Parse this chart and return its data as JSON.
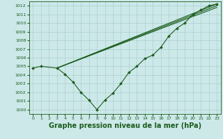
{
  "background_color": "#cce8e8",
  "grid_color": "#aacfcf",
  "line_color": "#1a5c1a",
  "marker_color": "#1a5c1a",
  "xlabel": "Graphe pression niveau de la mer (hPa)",
  "xlabel_fontsize": 7,
  "xlim": [
    -0.5,
    23.5
  ],
  "ylim": [
    999.5,
    1012.5
  ],
  "yticks": [
    1000,
    1001,
    1002,
    1003,
    1004,
    1005,
    1006,
    1007,
    1008,
    1009,
    1010,
    1011,
    1012
  ],
  "xticks": [
    0,
    1,
    2,
    3,
    4,
    5,
    6,
    7,
    8,
    9,
    10,
    11,
    12,
    13,
    14,
    15,
    16,
    17,
    18,
    19,
    20,
    21,
    22,
    23
  ],
  "series_main": {
    "x": [
      0,
      1,
      3,
      4,
      5,
      6,
      7,
      8,
      9,
      10,
      11,
      12,
      13,
      14,
      15,
      16,
      17,
      18,
      19,
      20,
      21,
      22,
      23
    ],
    "y": [
      1004.8,
      1005.0,
      1004.8,
      1004.1,
      1003.2,
      1002.0,
      1001.1,
      1000.0,
      1001.1,
      1001.9,
      1003.0,
      1004.3,
      1005.0,
      1005.9,
      1006.3,
      1007.2,
      1008.5,
      1009.4,
      1010.0,
      1011.0,
      1011.5,
      1012.0,
      1012.2
    ]
  },
  "series_lines": [
    {
      "x": [
        3,
        23
      ],
      "y": [
        1004.8,
        1012.2
      ]
    },
    {
      "x": [
        3,
        23
      ],
      "y": [
        1004.8,
        1012.0
      ]
    },
    {
      "x": [
        3,
        23
      ],
      "y": [
        1004.8,
        1011.8
      ]
    }
  ]
}
